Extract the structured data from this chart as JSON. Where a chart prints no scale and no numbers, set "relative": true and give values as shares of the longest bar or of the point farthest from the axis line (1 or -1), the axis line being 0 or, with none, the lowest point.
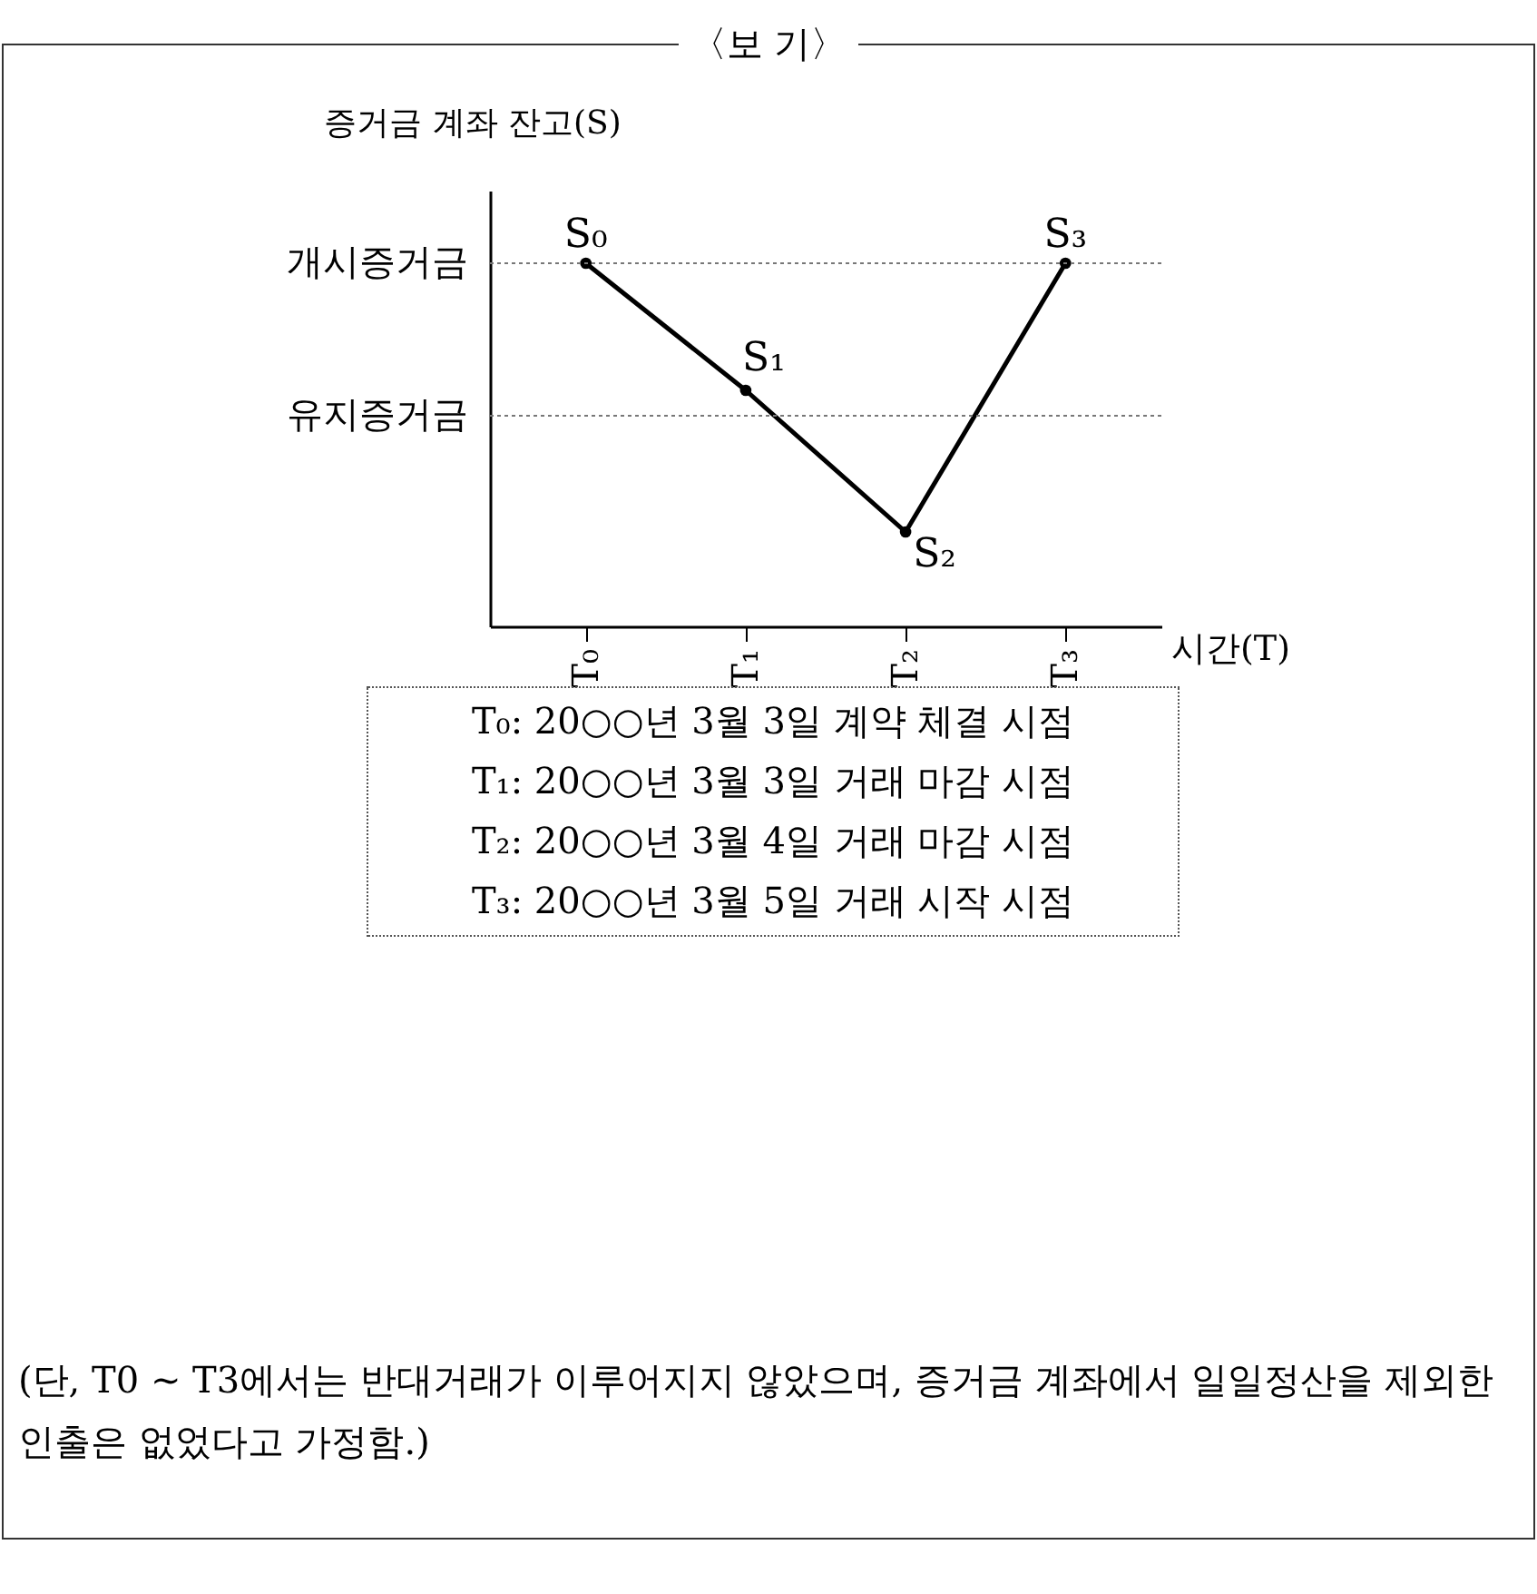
{
  "chart_data": {
    "type": "line",
    "title": "〈보 기〉",
    "ylabel": "증거금 계좌 잔고(S)",
    "xlabel": "시간(T)",
    "relative": true,
    "categories": [
      "T₀",
      "T₁",
      "T₂",
      "T₃"
    ],
    "series": [
      {
        "color": "#000000",
        "values": [
          1,
          0.65,
          0.26,
          1
        ]
      }
    ],
    "marker": "circle",
    "line_style": "solid",
    "grid": false,
    "ref_lines": [
      {
        "axis": "y",
        "value": 1,
        "label": "개시증거금",
        "color": "#777777",
        "line_style": "dotted"
      },
      {
        "axis": "y",
        "value": 0.58,
        "label": "유지증거금",
        "color": "#777777",
        "line_style": "dotted"
      }
    ],
    "annotations": [
      {
        "text": "S₀",
        "x": "T₀",
        "y": 1
      },
      {
        "text": "S₁",
        "x": "T₁",
        "y": 0.65
      },
      {
        "text": "S₂",
        "x": "T₂",
        "y": 0.26
      },
      {
        "text": "S₃",
        "x": "T₃",
        "y": 1
      },
      "T₀: 20○○년 3월 3일 계약 체결 시점",
      "T₁: 20○○년 3월 3일 거래 마감 시점",
      "T₂: 20○○년 3월 4일 거래 마감 시점",
      "T₃: 20○○년 3월 5일 거래 시작 시점",
      "(단, T0 ~ T3에서는 반대거래가 이루어지지 않았으며, 증거금 계좌에서 일일정산을 제외한 인출은 없었다고 가정함.)"
    ]
  }
}
